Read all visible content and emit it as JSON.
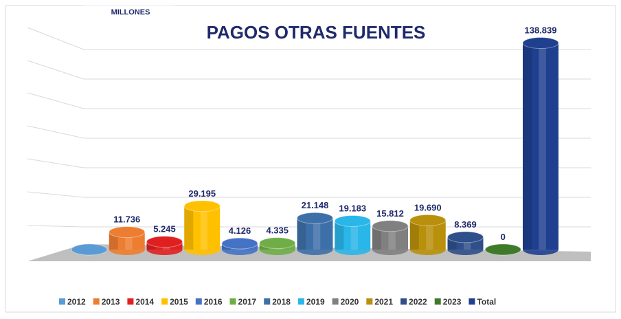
{
  "chart_data": {
    "type": "bar3d",
    "title": "PAGOS OTRAS FUENTES",
    "subtitle": "MILLONES",
    "categories": [
      "2012",
      "2013",
      "2014",
      "2015",
      "2016",
      "2017",
      "2018",
      "2019",
      "2020",
      "2021",
      "2022",
      "2023",
      "Total"
    ],
    "values": [
      0,
      11.736,
      5.245,
      29.195,
      4.126,
      4.335,
      21.148,
      19.183,
      15.812,
      19.69,
      8.369,
      0,
      138.839
    ],
    "value_labels": [
      null,
      "11.736",
      "5.245",
      "29.195",
      "4.126",
      "4.335",
      "21.148",
      "19.183",
      "15.812",
      "19.690",
      "8.369",
      "0",
      "138.839"
    ],
    "colors": [
      "#5b9bd5",
      "#ed7d31",
      "#e02020",
      "#ffc000",
      "#4472c4",
      "#70ad47",
      "#3d6fa8",
      "#29b6e8",
      "#808080",
      "#b8900c",
      "#2f4f8a",
      "#3f7a2a",
      "#1f3f8f"
    ],
    "ylim": [
      0,
      140
    ],
    "legend": "bottom"
  }
}
